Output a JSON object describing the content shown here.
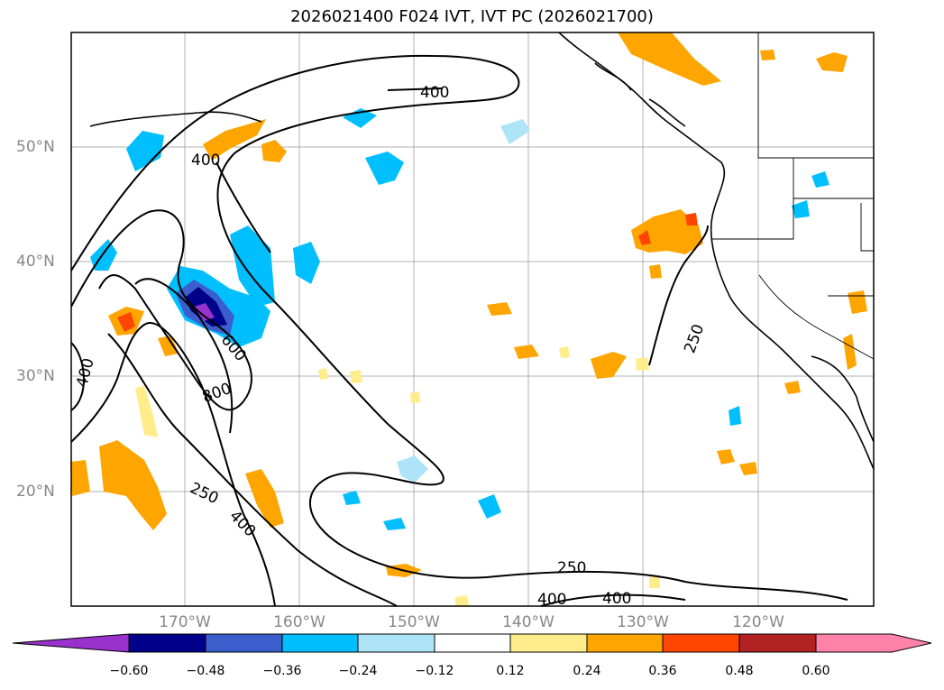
{
  "title": "2026021400 F024 IVT, IVT PC (2026021700)",
  "lat_labels": [
    "50°N",
    "40°N",
    "30°N",
    "20°N"
  ],
  "lon_labels": [
    "170°W",
    "160°W",
    "150°W",
    "140°W",
    "130°W",
    "120°W"
  ],
  "contour_labels": [
    "400",
    "400",
    "400",
    "600",
    "800",
    "250",
    "400",
    "250",
    "400",
    "400",
    "250"
  ],
  "colorbar": {
    "ticks": [
      "−0.60",
      "−0.48",
      "−0.36",
      "−0.24",
      "−0.12",
      "0.12",
      "0.24",
      "0.36",
      "0.48",
      "0.60"
    ],
    "colors": [
      "#9932cc",
      "#00008b",
      "#3a5fcd",
      "#00bfff",
      "#aee4f7",
      "#ffffff",
      "#ffec8b",
      "#ffa500",
      "#ff4500",
      "#b22222",
      "#ff82ab",
      "#ff82ab"
    ]
  }
}
